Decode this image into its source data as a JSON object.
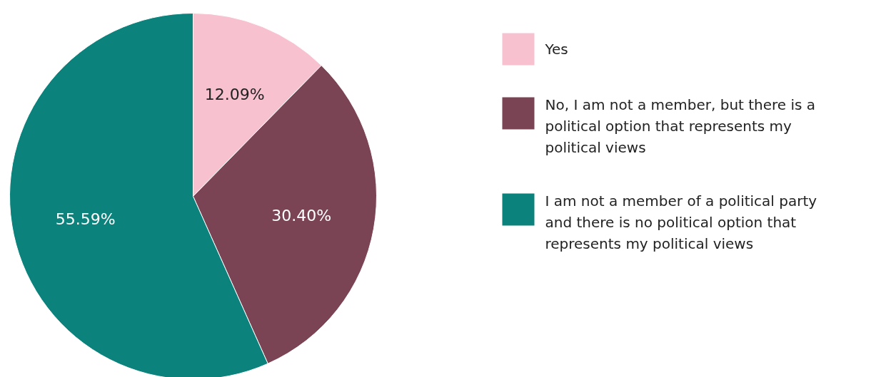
{
  "chart_data": {
    "type": "pie",
    "categories": [
      "Yes",
      "No, I am not a member, but there is a political option that represents my political views",
      "I am not a member of a political party and there is no political option that represents my political views"
    ],
    "values": [
      12.09,
      30.4,
      55.59
    ],
    "colors": [
      "#f7c1d0",
      "#7a4455",
      "#0b837c"
    ],
    "value_labels": [
      "12.09%",
      "30.40%",
      "55.59%"
    ],
    "legend": "right"
  }
}
